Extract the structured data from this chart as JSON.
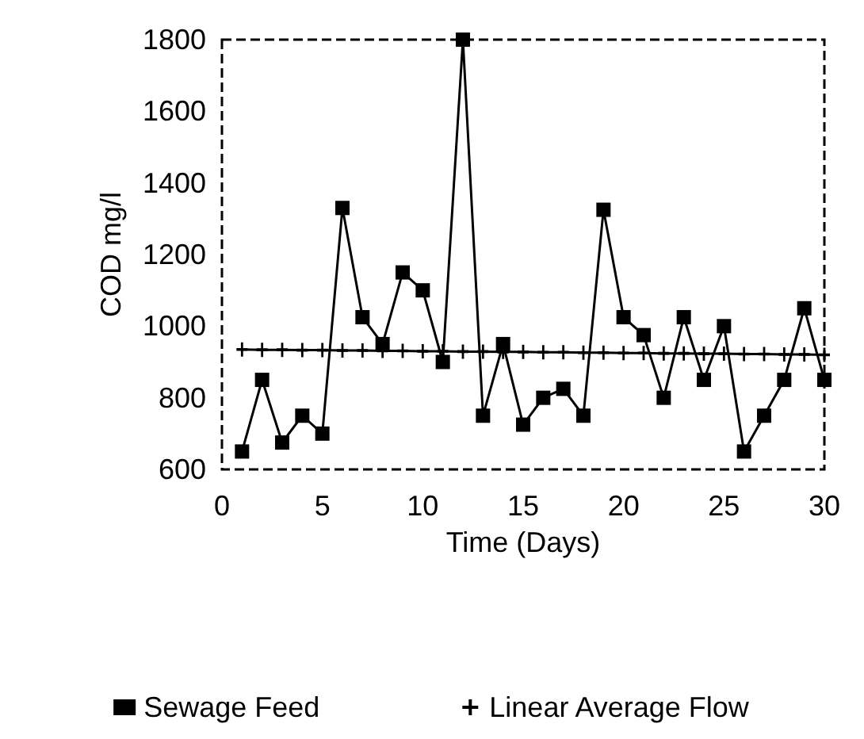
{
  "chart_data": {
    "type": "line",
    "xlabel": "Time (Days)",
    "ylabel": "COD mg/l",
    "xlim": [
      0,
      30
    ],
    "xticks": [
      0,
      5,
      10,
      15,
      20,
      25,
      30
    ],
    "ylim": [
      600,
      1800
    ],
    "yticks": [
      600,
      800,
      1000,
      1200,
      1400,
      1600,
      1800
    ],
    "grid": false,
    "legend": "bottom",
    "series": [
      {
        "name": "Sewage Feed",
        "color": "#000000",
        "marker": "square",
        "x": [
          1,
          2,
          3,
          4,
          5,
          6,
          7,
          8,
          9,
          10,
          11,
          12,
          13,
          14,
          15,
          16,
          17,
          18,
          19,
          20,
          21,
          22,
          23,
          24,
          25,
          26,
          27,
          28,
          29,
          30
        ],
        "values": [
          650,
          850,
          675,
          750,
          700,
          1330,
          1025,
          950,
          1150,
          1100,
          900,
          1800,
          750,
          950,
          725,
          800,
          825,
          750,
          1325,
          1025,
          975,
          800,
          1025,
          850,
          1000,
          650,
          750,
          850,
          1050,
          850
        ]
      },
      {
        "name": "Linear Average Flow",
        "color": "#000000",
        "marker": "cross",
        "x": [
          1,
          2,
          3,
          4,
          5,
          6,
          7,
          8,
          9,
          10,
          11,
          12,
          13,
          14,
          15,
          16,
          17,
          18,
          19,
          20,
          21,
          22,
          23,
          24,
          25,
          26,
          27,
          28,
          29,
          30
        ],
        "values": [
          935,
          934,
          934,
          933,
          933,
          932,
          932,
          931,
          931,
          930,
          930,
          929,
          929,
          928,
          928,
          927,
          927,
          926,
          926,
          925,
          925,
          924,
          924,
          923,
          923,
          922,
          922,
          921,
          921,
          920
        ]
      }
    ]
  }
}
